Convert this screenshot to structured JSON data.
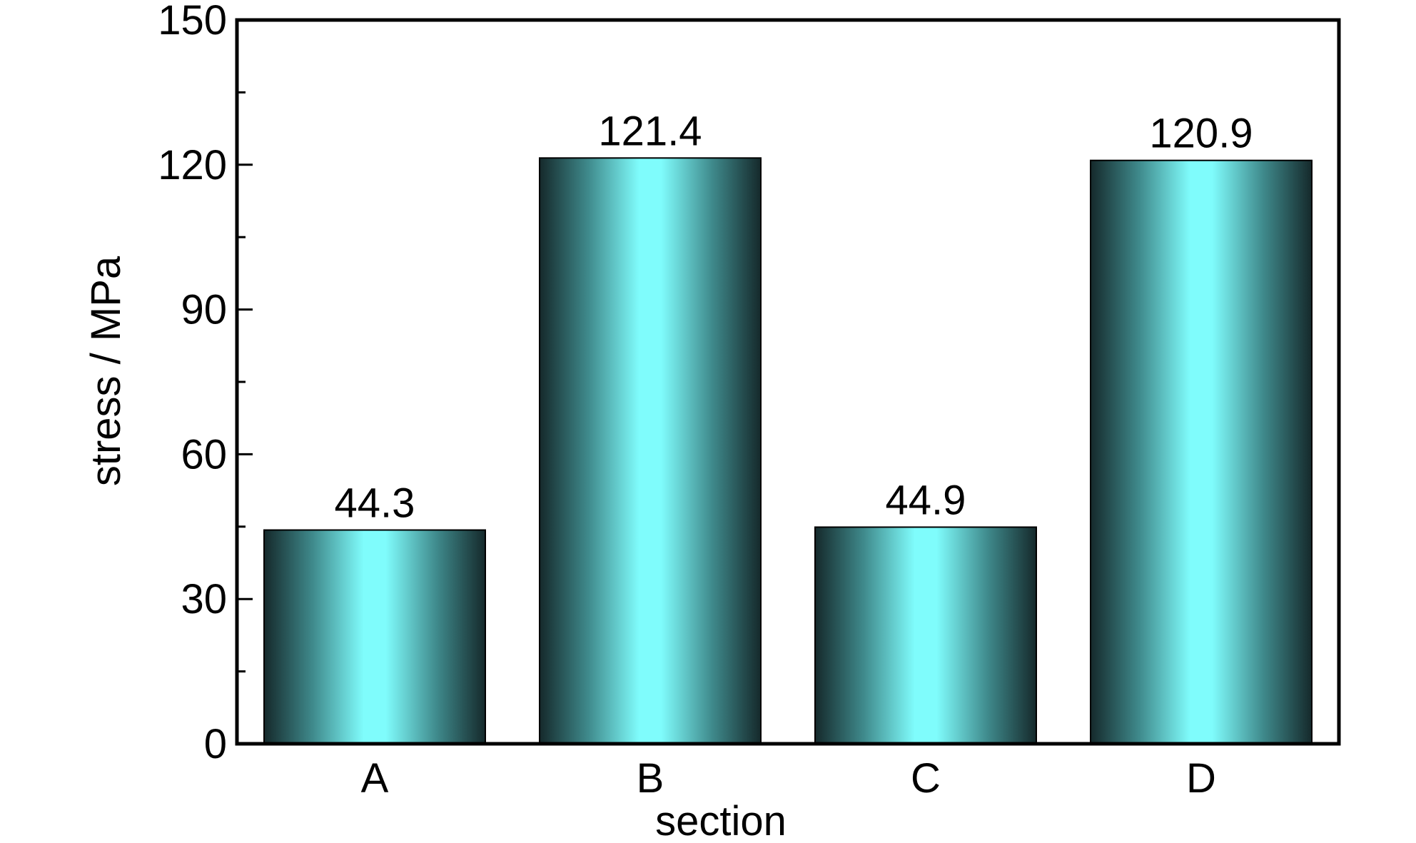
{
  "chart_data": {
    "type": "bar",
    "categories": [
      "A",
      "B",
      "C",
      "D"
    ],
    "values": [
      44.3,
      121.4,
      44.9,
      120.9
    ],
    "data_labels": [
      "44.3",
      "121.4",
      "44.9",
      "120.9"
    ],
    "title": "",
    "xlabel": "section",
    "ylabel": "stress / MPa",
    "ylim": [
      0,
      150
    ],
    "yticks": [
      0,
      30,
      60,
      90,
      120,
      150
    ],
    "yticks_labels": [
      "0",
      "30",
      "60",
      "90",
      "120",
      "150"
    ],
    "grid": false,
    "legend": "none",
    "bar_colors": {
      "center": "#7ffcfc",
      "edge": "#15292b",
      "outline": "#000000"
    }
  }
}
